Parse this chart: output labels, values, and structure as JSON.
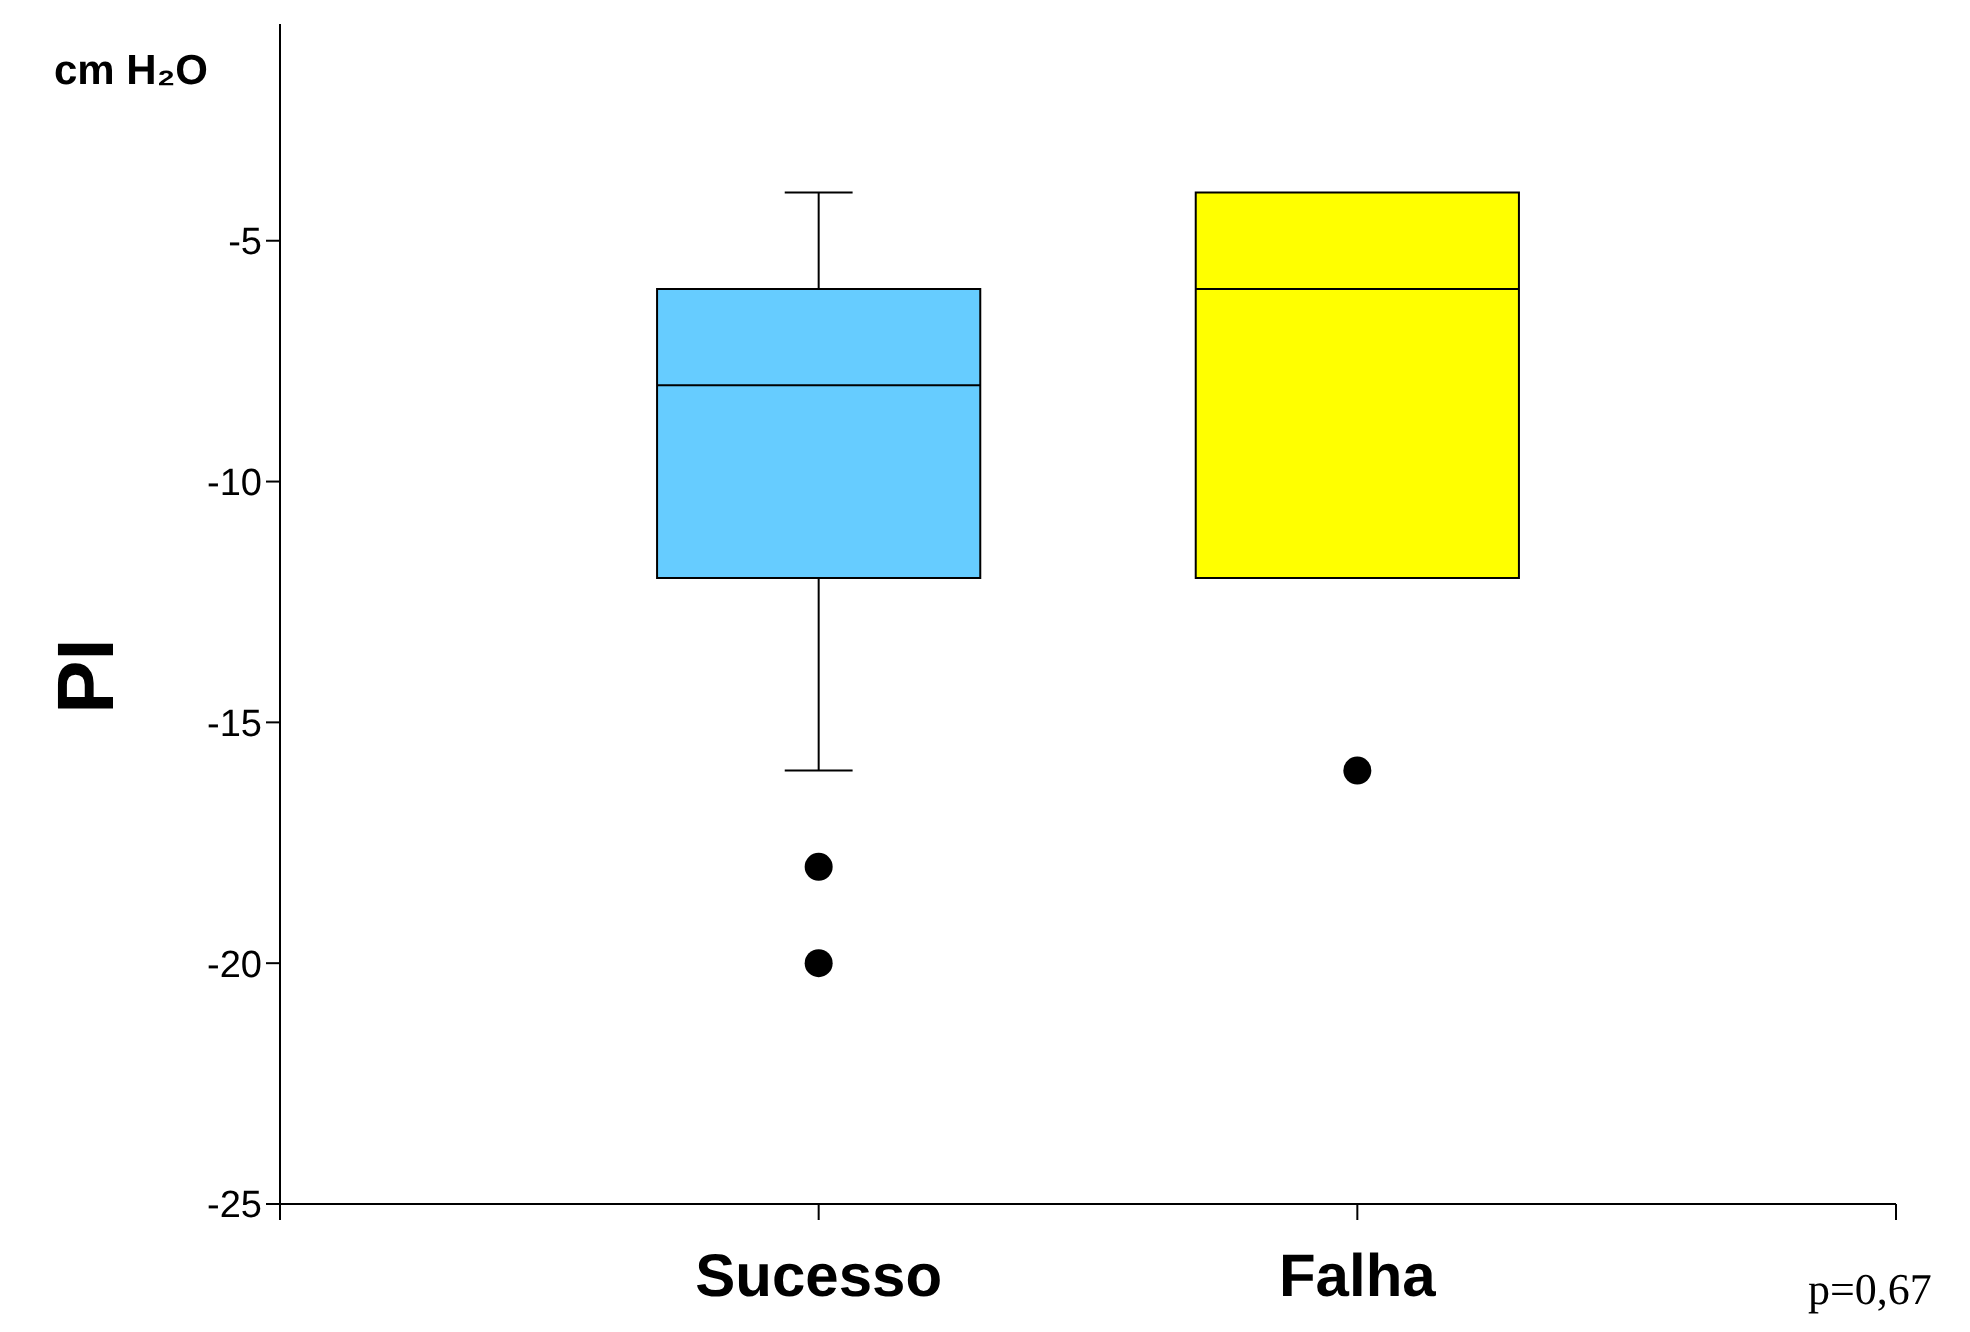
{
  "chart_data": {
    "type": "box",
    "ylabel": "PI",
    "annotations": [
      "cm H₂O",
      "p=0,67"
    ],
    "categories": [
      "Sucesso",
      "Falha"
    ],
    "colors": [
      "#66ccff",
      "#ffff00"
    ],
    "boxes": [
      {
        "low": -16,
        "q1": -12,
        "median": -8,
        "q3": -6,
        "high": -4,
        "outliers": [
          -18,
          -20
        ]
      },
      {
        "low": -12,
        "q1": -12,
        "median": -6,
        "q3": -4,
        "high": -4,
        "outliers": [
          -16
        ]
      }
    ],
    "ylim": [
      -25,
      -0.5
    ],
    "yticks": [
      -25,
      -20,
      -15,
      -10,
      -5
    ],
    "grid": false
  }
}
